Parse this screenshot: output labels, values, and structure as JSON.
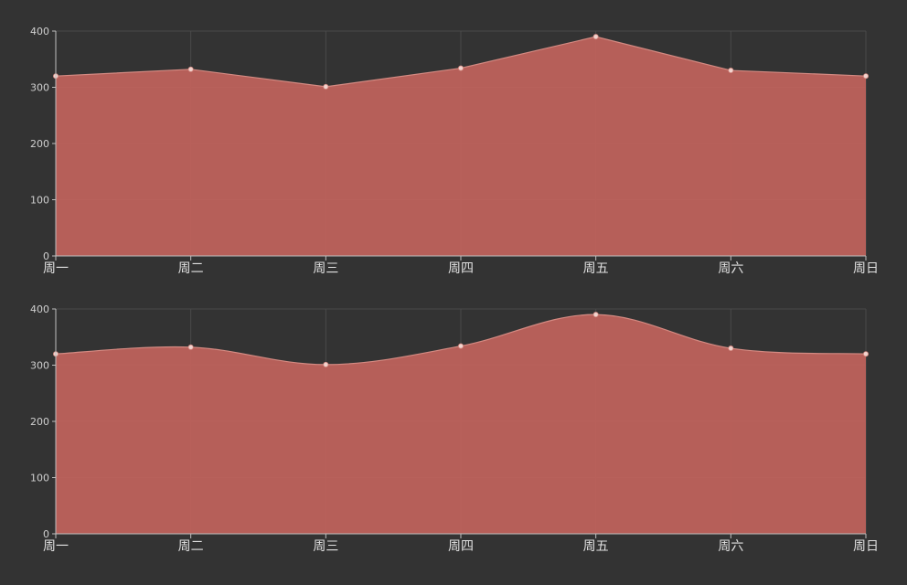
{
  "theme": {
    "background": "#333333",
    "area_fill": "#c1635c",
    "line_color": "#d48a82",
    "point_fill": "#f2d4cf",
    "grid_color": "#4a4a4a",
    "axis_color": "#bfbfbf"
  },
  "chart_data": [
    {
      "type": "area",
      "smooth": false,
      "categories": [
        "周一",
        "周二",
        "周三",
        "周四",
        "周五",
        "周六",
        "周日"
      ],
      "series": [
        {
          "values": [
            320,
            332,
            301,
            334,
            390,
            330,
            320
          ]
        }
      ],
      "ylim": [
        0,
        400
      ],
      "yticks": [
        0,
        100,
        200,
        300,
        400
      ],
      "grid": true,
      "legend": "none"
    },
    {
      "type": "area",
      "smooth": true,
      "categories": [
        "周一",
        "周二",
        "周三",
        "周四",
        "周五",
        "周六",
        "周日"
      ],
      "series": [
        {
          "values": [
            320,
            332,
            301,
            334,
            390,
            330,
            320
          ]
        }
      ],
      "ylim": [
        0,
        400
      ],
      "yticks": [
        0,
        100,
        200,
        300,
        400
      ],
      "grid": true,
      "legend": "none"
    }
  ]
}
